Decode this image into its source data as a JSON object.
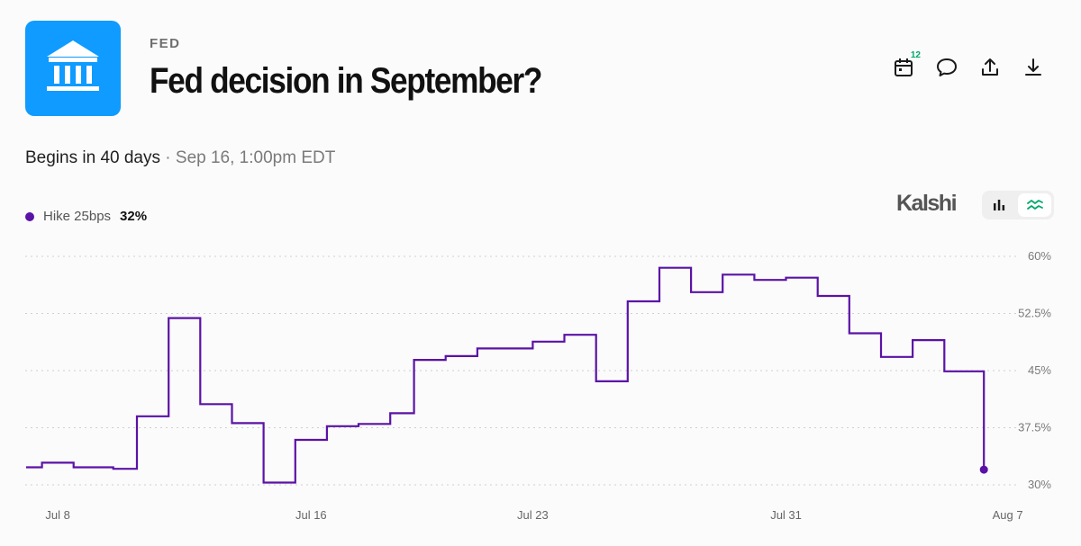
{
  "header": {
    "category": "FED",
    "title": "Fed decision in September?",
    "begins": "Begins in 40 days",
    "separator": "·",
    "date": "Sep 16, 1:00pm EDT",
    "calendar_badge": "12"
  },
  "toolbar": {
    "icons": [
      "calendar-icon",
      "comment-icon",
      "share-icon",
      "download-icon"
    ]
  },
  "brand": "Kalshi",
  "view_toggle": [
    "bar-chart-icon",
    "line-chart-icon"
  ],
  "colors": {
    "accent": "#0f9bff",
    "series": "#5b12a6",
    "badge": "#00a86b",
    "toggle_active": "#00a86b"
  },
  "legend": {
    "name": "Hike 25bps",
    "value": "32%"
  },
  "chart_data": {
    "type": "line",
    "step": true,
    "title": "",
    "xlabel": "",
    "ylabel": "",
    "ylim": [
      30,
      60
    ],
    "y_ticks": [
      "60%",
      "52.5%",
      "45%",
      "37.5%",
      "30%"
    ],
    "y_tick_values": [
      60,
      52.5,
      45,
      37.5,
      30
    ],
    "x_ticks": [
      "Jul 8",
      "Jul 16",
      "Jul 23",
      "Jul 31",
      "Aug 7"
    ],
    "x_tick_values": [
      "2025-07-08",
      "2025-07-16",
      "2025-07-23",
      "2025-07-31",
      "2025-08-07"
    ],
    "grid": true,
    "series": [
      {
        "name": "Hike 25bps",
        "color": "#5b12a6",
        "points": [
          [
            "2025-07-07",
            32.3
          ],
          [
            "2025-07-07 12:00",
            32.9
          ],
          [
            "2025-07-08 12:00",
            32.3
          ],
          [
            "2025-07-09 18:00",
            32.1
          ],
          [
            "2025-07-10 12:00",
            39.0
          ],
          [
            "2025-07-11 12:00",
            51.9
          ],
          [
            "2025-07-12 12:00",
            40.6
          ],
          [
            "2025-07-13 12:00",
            38.1
          ],
          [
            "2025-07-14 12:00",
            30.3
          ],
          [
            "2025-07-15 12:00",
            35.9
          ],
          [
            "2025-07-16 12:00",
            37.7
          ],
          [
            "2025-07-17 12:00",
            38.0
          ],
          [
            "2025-07-18 12:00",
            39.4
          ],
          [
            "2025-07-19 06:00",
            46.4
          ],
          [
            "2025-07-20 06:00",
            46.9
          ],
          [
            "2025-07-21 06:00",
            47.9
          ],
          [
            "2025-07-23 00:00",
            48.8
          ],
          [
            "2025-07-24 00:00",
            49.7
          ],
          [
            "2025-07-25 00:00",
            43.6
          ],
          [
            "2025-07-26 00:00",
            54.1
          ],
          [
            "2025-07-27 00:00",
            58.5
          ],
          [
            "2025-07-28 00:00",
            55.3
          ],
          [
            "2025-07-29 00:00",
            57.6
          ],
          [
            "2025-07-30 00:00",
            56.9
          ],
          [
            "2025-07-31 00:00",
            57.2
          ],
          [
            "2025-08-01 00:00",
            54.8
          ],
          [
            "2025-08-02 00:00",
            49.9
          ],
          [
            "2025-08-03 00:00",
            46.8
          ],
          [
            "2025-08-04 00:00",
            49.0
          ],
          [
            "2025-08-05 00:00",
            44.9
          ],
          [
            "2025-08-06 00:00",
            44.9
          ],
          [
            "2025-08-06 06:00",
            32.0
          ]
        ]
      }
    ]
  }
}
